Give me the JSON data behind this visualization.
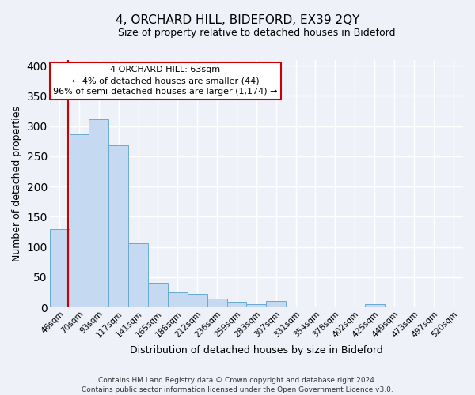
{
  "title": "4, ORCHARD HILL, BIDEFORD, EX39 2QY",
  "subtitle": "Size of property relative to detached houses in Bideford",
  "xlabel": "Distribution of detached houses by size in Bideford",
  "ylabel": "Number of detached properties",
  "bar_color": "#c5daf0",
  "bar_edge_color": "#6aaad4",
  "annotation_box_color": "#ffffff",
  "annotation_border_color": "#cc0000",
  "red_line_color": "#cc0000",
  "categories": [
    "46sqm",
    "70sqm",
    "93sqm",
    "117sqm",
    "141sqm",
    "165sqm",
    "188sqm",
    "212sqm",
    "236sqm",
    "259sqm",
    "283sqm",
    "307sqm",
    "331sqm",
    "354sqm",
    "378sqm",
    "402sqm",
    "425sqm",
    "449sqm",
    "473sqm",
    "497sqm",
    "520sqm"
  ],
  "values": [
    130,
    287,
    311,
    268,
    106,
    41,
    25,
    22,
    14,
    9,
    5,
    10,
    0,
    0,
    0,
    0,
    5,
    0,
    0,
    0,
    0
  ],
  "ylim": [
    0,
    410
  ],
  "yticks": [
    0,
    50,
    100,
    150,
    200,
    250,
    300,
    350,
    400
  ],
  "annotation_title": "4 ORCHARD HILL: 63sqm",
  "annotation_line1": "← 4% of detached houses are smaller (44)",
  "annotation_line2": "96% of semi-detached houses are larger (1,174) →",
  "footer_line1": "Contains HM Land Registry data © Crown copyright and database right 2024.",
  "footer_line2": "Contains public sector information licensed under the Open Government Licence v3.0.",
  "background_color": "#eef2f8",
  "plot_bg_color": "#eef2f8",
  "grid_color": "#ffffff",
  "title_fontsize": 11,
  "subtitle_fontsize": 9,
  "axis_label_fontsize": 9,
  "tick_fontsize": 7.5,
  "annotation_fontsize": 8,
  "footer_fontsize": 6.5
}
